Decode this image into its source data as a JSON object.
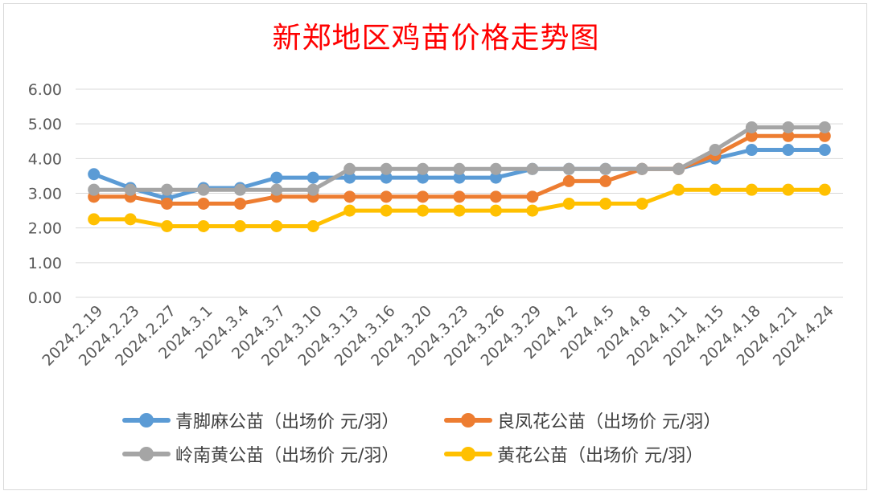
{
  "chart_data": {
    "type": "line",
    "title": "新郑地区鸡苗价格走势图",
    "categories": [
      "2024.2.19",
      "2024.2.23",
      "2024.2.27",
      "2024.3.1",
      "2024.3.4",
      "2024.3.7",
      "2024.3.10",
      "2024.3.13",
      "2024.3.16",
      "2024.3.20",
      "2024.3.23",
      "2024.3.26",
      "2024.3.29",
      "2024.4.2",
      "2024.4.5",
      "2024.4.8",
      "2024.4.11",
      "2024.4.15",
      "2024.4.18",
      "2024.4.21",
      "2024.4.24"
    ],
    "y_ticks": [
      "0.00",
      "1.00",
      "2.00",
      "3.00",
      "4.00",
      "5.00",
      "6.00"
    ],
    "ylim": [
      0,
      6
    ],
    "grid": true,
    "legend_position": "bottom",
    "series": [
      {
        "name": "青脚麻公苗（出场价 元/羽）",
        "color": "#5b9bd5",
        "values": [
          3.55,
          3.15,
          2.85,
          3.15,
          3.15,
          3.45,
          3.45,
          3.45,
          3.45,
          3.45,
          3.45,
          3.45,
          3.7,
          3.7,
          3.7,
          3.7,
          3.7,
          4.0,
          4.25,
          4.25,
          4.25
        ]
      },
      {
        "name": "良凤花公苗（出场价 元/羽）",
        "color": "#ed7d31",
        "values": [
          2.9,
          2.9,
          2.7,
          2.7,
          2.7,
          2.9,
          2.9,
          2.9,
          2.9,
          2.9,
          2.9,
          2.9,
          2.9,
          3.35,
          3.35,
          3.7,
          3.7,
          4.1,
          4.65,
          4.65,
          4.65
        ]
      },
      {
        "name": "岭南黄公苗（出场价 元/羽）",
        "color": "#a5a5a5",
        "values": [
          3.1,
          3.1,
          3.1,
          3.1,
          3.1,
          3.1,
          3.1,
          3.7,
          3.7,
          3.7,
          3.7,
          3.7,
          3.7,
          3.7,
          3.7,
          3.7,
          3.7,
          4.25,
          4.9,
          4.9,
          4.9
        ]
      },
      {
        "name": "黄花公苗（出场价 元/羽）",
        "color": "#ffc000",
        "values": [
          2.25,
          2.25,
          2.05,
          2.05,
          2.05,
          2.05,
          2.05,
          2.5,
          2.5,
          2.5,
          2.5,
          2.5,
          2.5,
          2.7,
          2.7,
          2.7,
          3.1,
          3.1,
          3.1,
          3.1,
          3.1
        ]
      }
    ]
  }
}
